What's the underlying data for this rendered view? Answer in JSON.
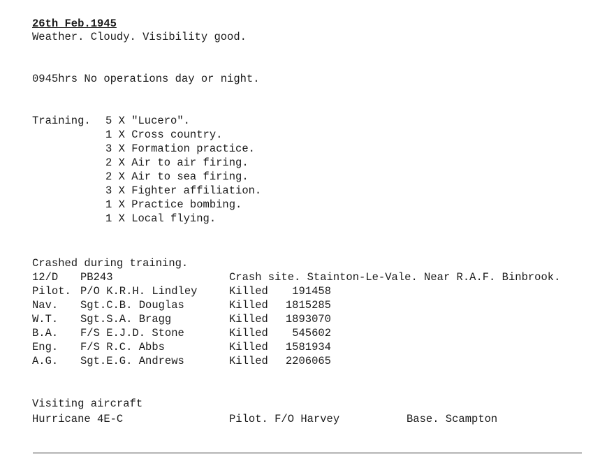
{
  "date": "26th Feb.1945",
  "weather": "Weather. Cloudy. Visibility good.",
  "operations": "0945hrs No operations day or night.",
  "training": {
    "label": "Training.",
    "items": [
      "5 X \"Lucero\".",
      "1 X Cross country.",
      "3 X Formation practice.",
      "2 X Air to air firing.",
      "2 X Air to sea firing.",
      "3 X Fighter affiliation.",
      "1 X Practice bombing.",
      "1 X Local flying."
    ]
  },
  "crash": {
    "heading": "Crashed during training.",
    "squadron_code": "12/D",
    "aircraft": "PB243",
    "site": "Crash site. Stainton-Le-Vale. Near R.A.F. Binbrook.",
    "crew": [
      {
        "role": "Pilot.",
        "name": "P/O K.R.H. Lindley",
        "status": "Killed",
        "number": "191458"
      },
      {
        "role": "Nav.",
        "name": "Sgt.C.B. Douglas",
        "status": "Killed",
        "number": "1815285"
      },
      {
        "role": "W.T.",
        "name": "Sgt.S.A. Bragg",
        "status": "Killed",
        "number": "1893070"
      },
      {
        "role": "B.A.",
        "name": "F/S E.J.D. Stone",
        "status": "Killed",
        "number": "545602"
      },
      {
        "role": "Eng.",
        "name": "F/S R.C. Abbs",
        "status": "Killed",
        "number": "1581934"
      },
      {
        "role": "A.G.",
        "name": "Sgt.E.G. Andrews",
        "status": "Killed",
        "number": "2206065"
      }
    ]
  },
  "visiting": {
    "heading": "Visiting aircraft",
    "aircraft": "Hurricane 4E-C",
    "pilot": "Pilot. F/O Harvey",
    "base": "Base. Scampton"
  }
}
